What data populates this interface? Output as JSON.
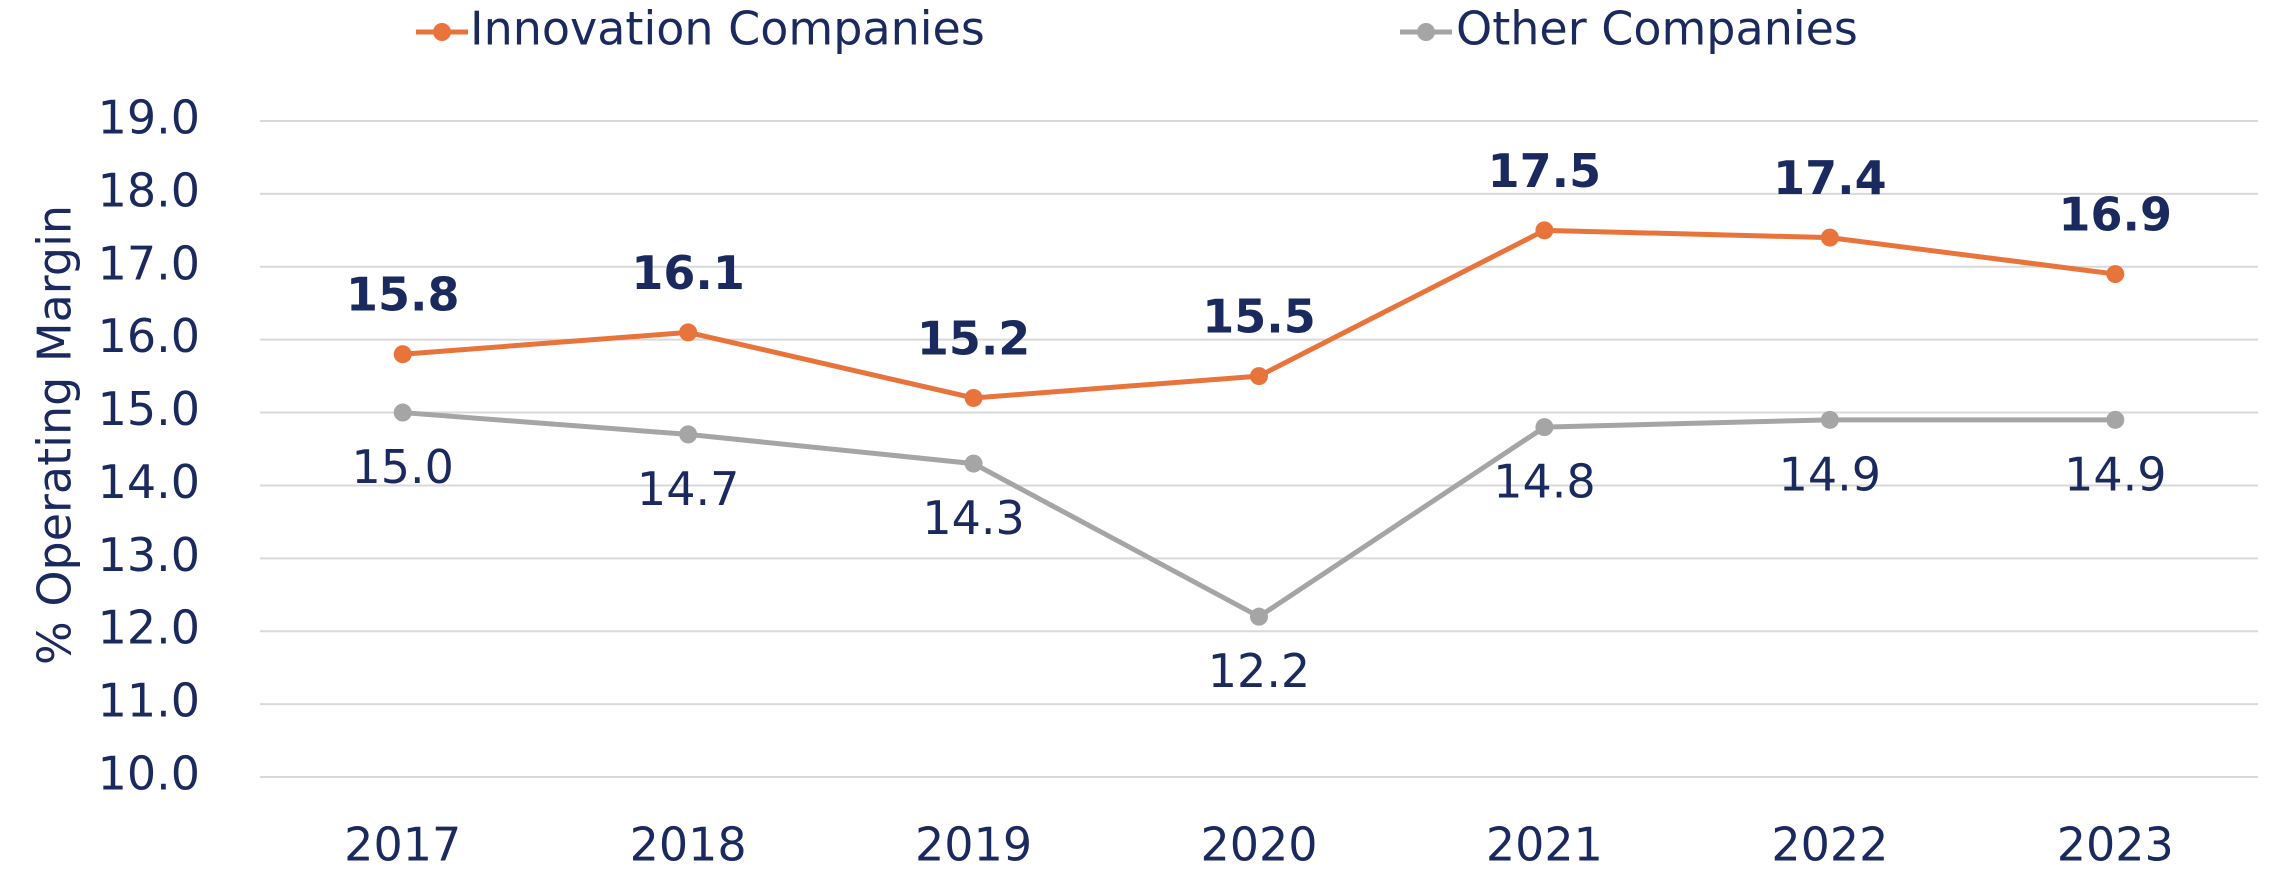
{
  "chart_data": {
    "type": "line",
    "ylabel": "% Operating Margin",
    "categories": [
      "2017",
      "2018",
      "2019",
      "2020",
      "2021",
      "2022",
      "2023"
    ],
    "series": [
      {
        "name": "Innovation Companies",
        "color": "#e8743b",
        "values": [
          15.8,
          16.1,
          15.2,
          15.5,
          17.5,
          17.4,
          16.9
        ],
        "value_labels": [
          "15.8",
          "16.1",
          "15.2",
          "15.5",
          "17.5",
          "17.4",
          "16.9"
        ]
      },
      {
        "name": "Other Companies",
        "color": "#a5a5a5",
        "values": [
          15.0,
          14.7,
          14.3,
          12.2,
          14.8,
          14.9,
          14.9
        ],
        "value_labels": [
          "15.0",
          "14.7",
          "14.3",
          "12.2",
          "14.8",
          "14.9",
          "14.9"
        ]
      }
    ],
    "ylim": [
      10,
      19
    ],
    "yticks": [
      {
        "value": 10,
        "label": "10.0"
      },
      {
        "value": 11,
        "label": "11.0"
      },
      {
        "value": 12,
        "label": "12.0"
      },
      {
        "value": 13,
        "label": "13.0"
      },
      {
        "value": 14,
        "label": "14.0"
      },
      {
        "value": 15,
        "label": "15.0"
      },
      {
        "value": 16,
        "label": "16.0"
      },
      {
        "value": 17,
        "label": "17.0"
      },
      {
        "value": 18,
        "label": "18.0"
      },
      {
        "value": 19,
        "label": "19.0"
      }
    ],
    "grid": true,
    "legend": "top"
  }
}
